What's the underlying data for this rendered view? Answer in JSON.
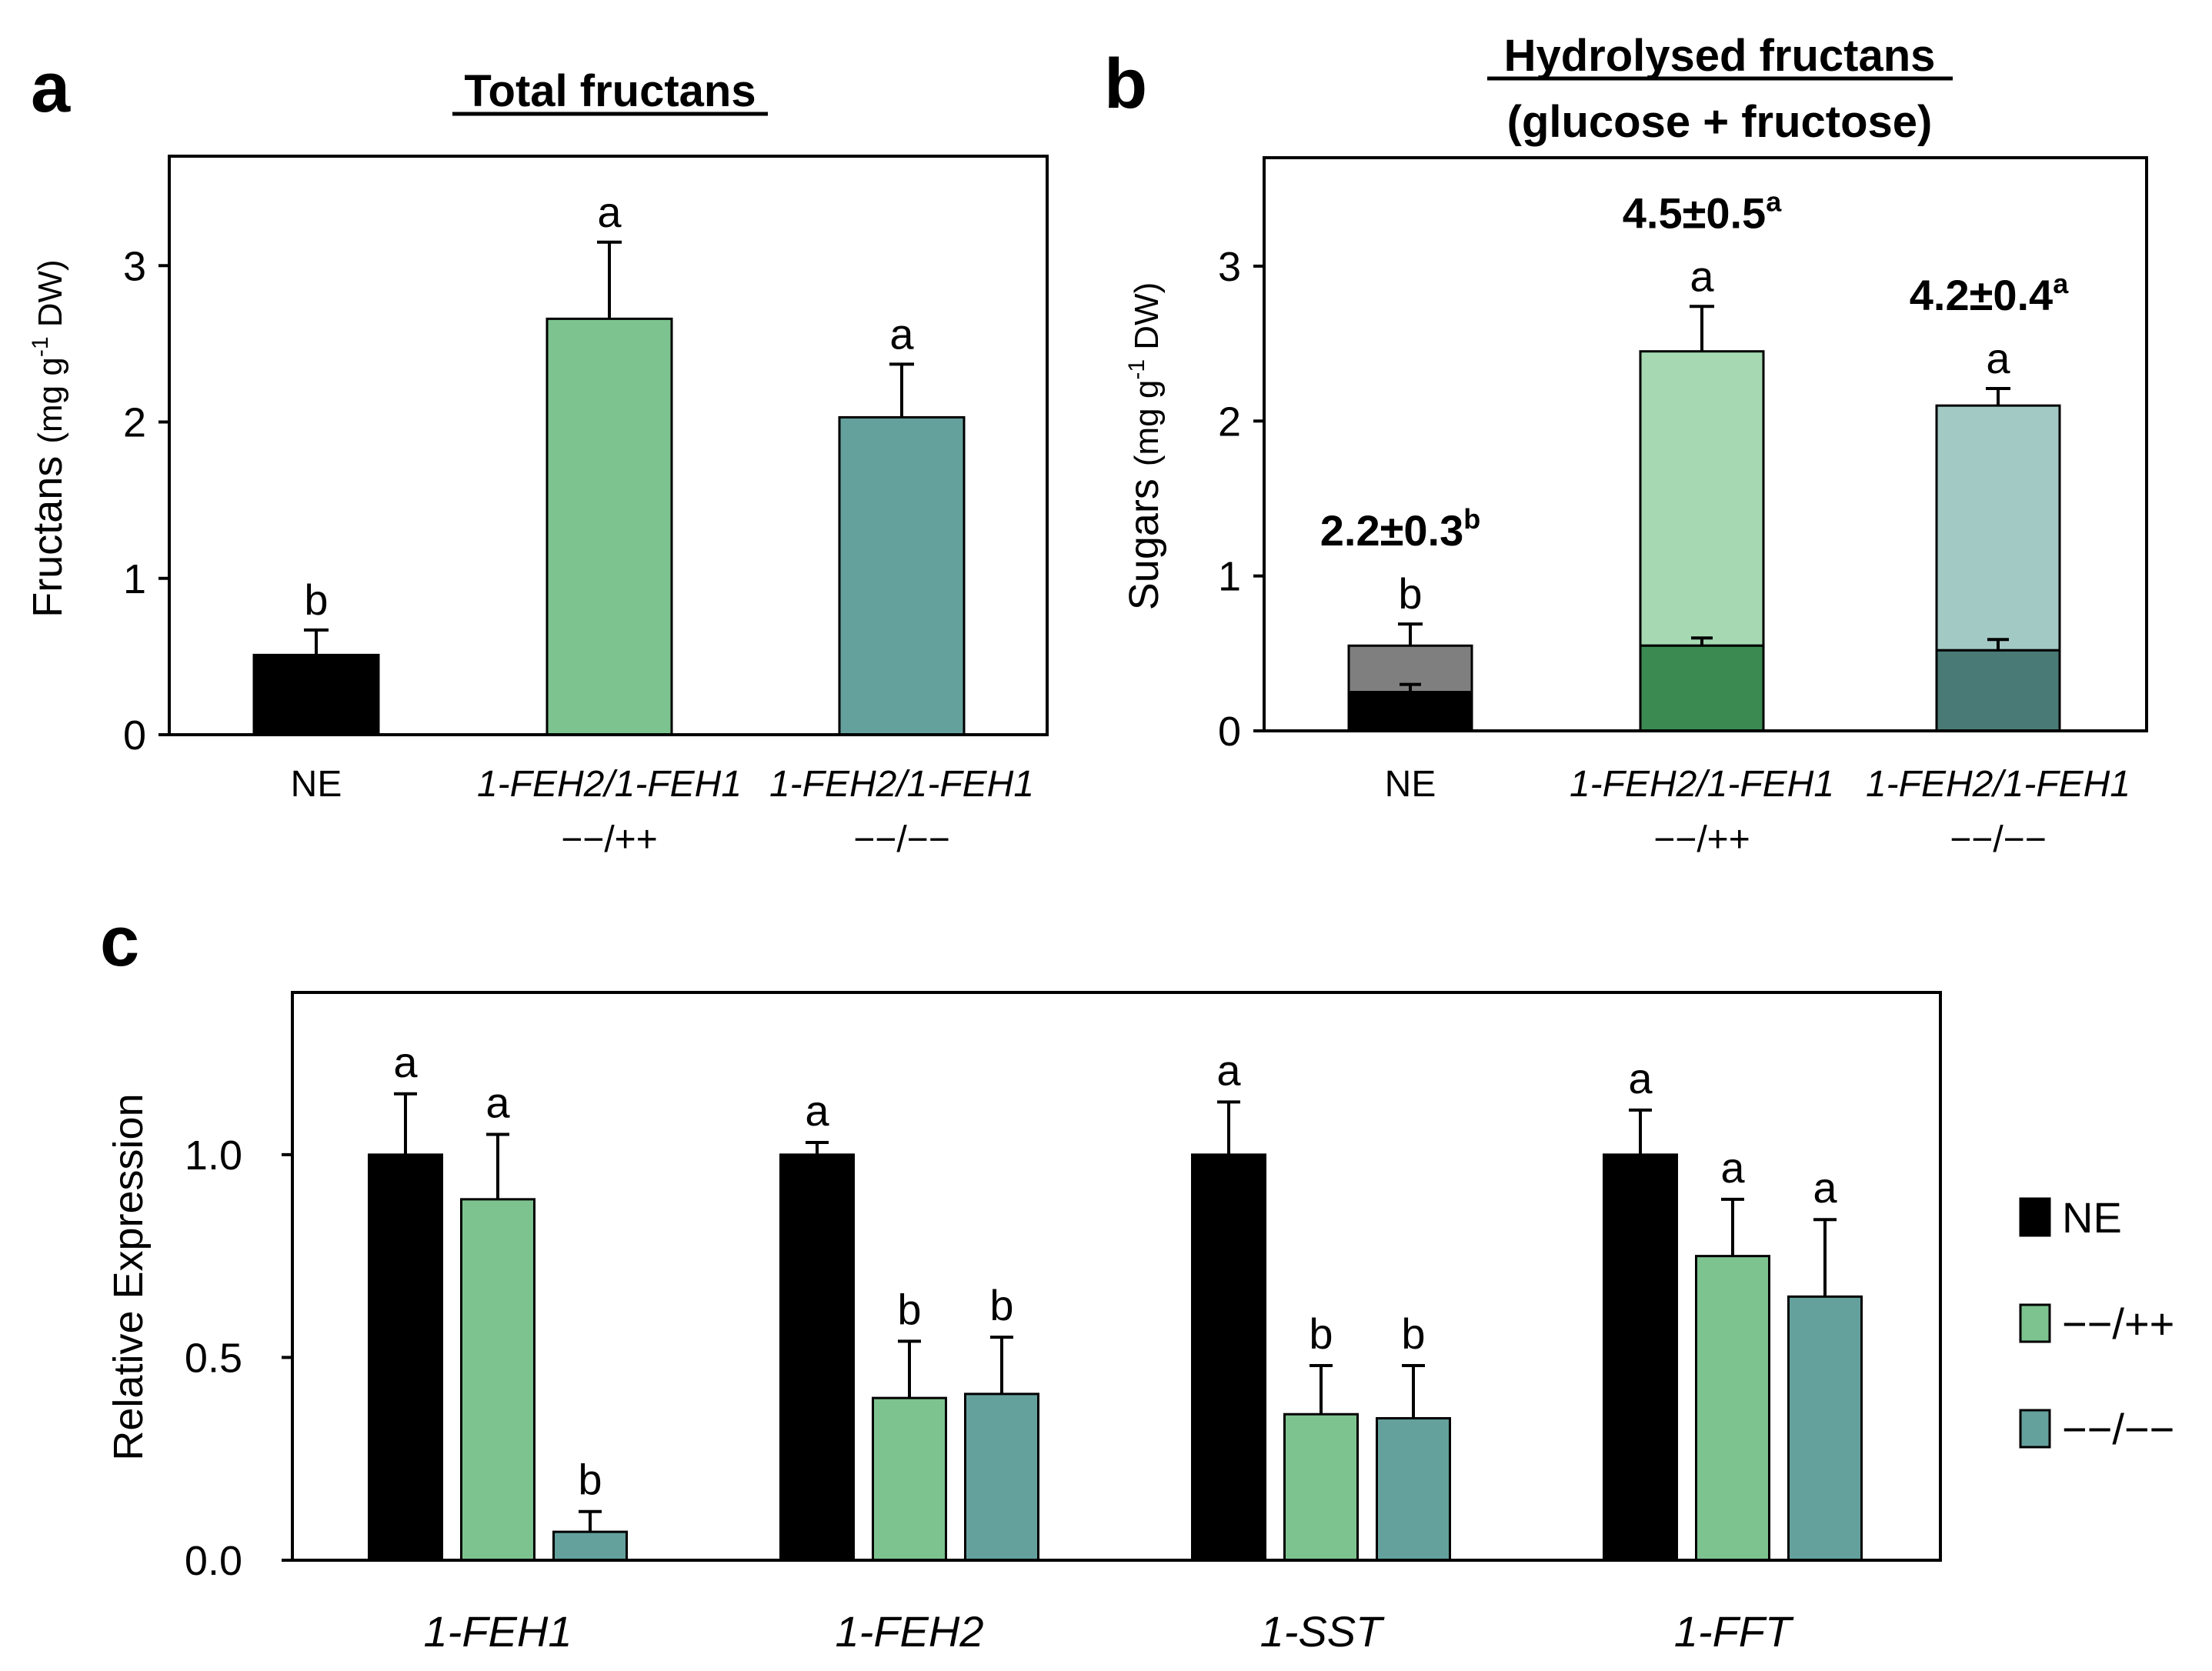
{
  "colors": {
    "ne": "#000000",
    "het": "#7dc38f",
    "homo": "#64a19d",
    "ne_total": "#7f7f7f",
    "het_total": "#a6d9b2",
    "homo_total": "#a3c9c5",
    "het_base": "#3b8a52",
    "homo_base": "#4a7a76"
  },
  "panels": {
    "a": {
      "letter": "a",
      "title": "Total fructans",
      "ylabel_main": "Fructans",
      "ylabel_unit": "(mg g",
      "ylabel_sup": "-1",
      "ylabel_unit_end": " DW)"
    },
    "b": {
      "letter": "b",
      "title_line1": "Hydrolysed fructans",
      "title_line2": "(glucose + fructose)",
      "ylabel_main": "Sugars",
      "ylabel_unit": "(mg g",
      "ylabel_sup": "-1",
      "ylabel_unit_end": " DW)"
    },
    "c": {
      "letter": "c"
    }
  },
  "chart_data": [
    {
      "id": "a",
      "type": "bar",
      "title": "Total fructans",
      "ylabel": "Fructans (mg g-1 DW)",
      "ylim": [
        0,
        3.7
      ],
      "yticks": [
        "0",
        "1",
        "2",
        "3"
      ],
      "categories": [
        {
          "line1": "NE",
          "line2": "",
          "italic": false
        },
        {
          "line1": "1-FEH2/1-FEH1",
          "line2": "−−/++",
          "italic": true
        },
        {
          "line1": "1-FEH2/1-FEH1",
          "line2": "−−/−−",
          "italic": true
        }
      ],
      "values": [
        0.51,
        2.66,
        2.03
      ],
      "errors": [
        0.16,
        0.49,
        0.34
      ],
      "letters": [
        "b",
        "a",
        "a"
      ]
    },
    {
      "id": "b",
      "type": "bar",
      "stacked": true,
      "title": "Hydrolysed fructans (glucose + fructose)",
      "ylabel": "Sugars (mg g-1 DW)",
      "ylim": [
        0,
        3.7
      ],
      "yticks": [
        "0",
        "1",
        "2",
        "3"
      ],
      "categories": [
        {
          "line1": "NE",
          "line2": "",
          "italic": false
        },
        {
          "line1": "1-FEH2/1-FEH1",
          "line2": "−−/++",
          "italic": true
        },
        {
          "line1": "1-FEH2/1-FEH1",
          "line2": "−−/−−",
          "italic": true
        }
      ],
      "series": [
        {
          "name": "glucose",
          "values": [
            0.25,
            0.55,
            0.52
          ],
          "errors": [
            0.05,
            0.05,
            0.07
          ]
        },
        {
          "name": "fructose",
          "values": [
            0.3,
            1.9,
            1.58
          ],
          "errors": [
            0.14,
            0.29,
            0.11
          ]
        }
      ],
      "letters": [
        "b",
        "a",
        "a"
      ],
      "totals": [
        {
          "label": "2.2±0.3",
          "sup": "b"
        },
        {
          "label": "4.5±0.5",
          "sup": "a"
        },
        {
          "label": "4.2±0.4",
          "sup": "a"
        }
      ]
    },
    {
      "id": "c",
      "type": "bar",
      "ylabel": "Relative Expression",
      "ylim": [
        0,
        1.4
      ],
      "yticks": [
        "0.0",
        "0.5",
        "1.0"
      ],
      "categories": [
        "1-FEH1",
        "1-FEH2",
        "1-SST",
        "1-FFT"
      ],
      "series": [
        {
          "name": "NE",
          "values": [
            1.0,
            1.0,
            1.0,
            1.0
          ],
          "errors": [
            0.15,
            0.03,
            0.13,
            0.11
          ],
          "letters": [
            "a",
            "a",
            "a",
            "a"
          ]
        },
        {
          "name": "−−/++",
          "values": [
            0.89,
            0.4,
            0.36,
            0.75
          ],
          "errors": [
            0.16,
            0.14,
            0.12,
            0.14
          ],
          "letters": [
            "a",
            "b",
            "b",
            "a"
          ]
        },
        {
          "name": "−−/−−",
          "values": [
            0.07,
            0.41,
            0.35,
            0.65
          ],
          "errors": [
            0.05,
            0.14,
            0.13,
            0.19
          ],
          "letters": [
            "b",
            "b",
            "b",
            "a"
          ]
        }
      ],
      "legend": [
        "NE",
        "−−/++",
        "−−/−−"
      ],
      "legend_position": "right"
    }
  ]
}
